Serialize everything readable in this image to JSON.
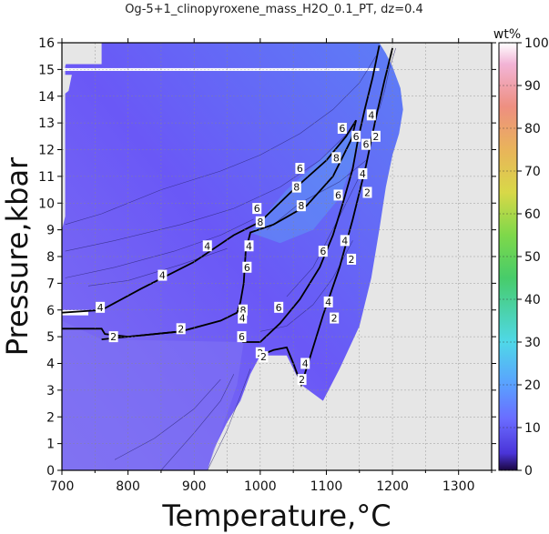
{
  "chart_data": {
    "type": "heatmap",
    "title": "Og-5+1_clinopyroxene_mass_H2O_0.1_PT, dz=0.4",
    "xlabel": "Temperature,°C",
    "ylabel": "Pressure,kbar",
    "xlim": [
      700,
      1350
    ],
    "ylim": [
      0,
      16
    ],
    "xticks": [
      "700",
      "800",
      "900",
      "1000",
      "1100",
      "1200",
      "1300"
    ],
    "yticks": [
      "0",
      "1",
      "2",
      "3",
      "4",
      "5",
      "6",
      "7",
      "8",
      "9",
      "10",
      "11",
      "12",
      "13",
      "14",
      "15",
      "16"
    ],
    "grid": true,
    "colorbar": {
      "unit": "wt%",
      "range": [
        0,
        100
      ],
      "ticks": [
        "0",
        "10",
        "20",
        "30",
        "40",
        "50",
        "60",
        "70",
        "80",
        "90",
        "100"
      ],
      "colors": [
        "#2a0a55",
        "#5544ee",
        "#6677ff",
        "#55aaff",
        "#44dddd",
        "#44cc66",
        "#88dd44",
        "#ddcc44",
        "#ee9966",
        "#f3a6c6",
        "#ffffff"
      ]
    },
    "field_colors": {
      "low": "#7a6cf5",
      "mid": "#6d5cf7",
      "high": "#5a8ef7",
      "no_data": "#e6e6e6"
    },
    "contour_labels": [
      {
        "t": 758,
        "p": 6.1,
        "v": "4"
      },
      {
        "t": 852,
        "p": 7.3,
        "v": "4"
      },
      {
        "t": 920,
        "p": 8.4,
        "v": "4"
      },
      {
        "t": 1000,
        "p": 9.3,
        "v": "8"
      },
      {
        "t": 995,
        "p": 9.8,
        "v": "6"
      },
      {
        "t": 1060,
        "p": 11.3,
        "v": "6"
      },
      {
        "t": 1055,
        "p": 10.6,
        "v": "8"
      },
      {
        "t": 1062,
        "p": 9.9,
        "v": "8"
      },
      {
        "t": 1115,
        "p": 11.7,
        "v": "8"
      },
      {
        "t": 1124,
        "p": 12.8,
        "v": "6"
      },
      {
        "t": 1145,
        "p": 12.5,
        "v": "6"
      },
      {
        "t": 1160,
        "p": 12.2,
        "v": "6"
      },
      {
        "t": 1168,
        "p": 13.3,
        "v": "4"
      },
      {
        "t": 1175,
        "p": 12.5,
        "v": "2"
      },
      {
        "t": 1118,
        "p": 10.3,
        "v": "6"
      },
      {
        "t": 1155,
        "p": 11.1,
        "v": "4"
      },
      {
        "t": 1162,
        "p": 10.4,
        "v": "2"
      },
      {
        "t": 1095,
        "p": 8.2,
        "v": "6"
      },
      {
        "t": 1128,
        "p": 8.6,
        "v": "4"
      },
      {
        "t": 1138,
        "p": 7.9,
        "v": "2"
      },
      {
        "t": 1028,
        "p": 6.1,
        "v": "6"
      },
      {
        "t": 1103,
        "p": 6.3,
        "v": "4"
      },
      {
        "t": 1112,
        "p": 5.7,
        "v": "2"
      },
      {
        "t": 983,
        "p": 8.4,
        "v": "4"
      },
      {
        "t": 980,
        "p": 7.6,
        "v": "6"
      },
      {
        "t": 974,
        "p": 6.0,
        "v": "8"
      },
      {
        "t": 973,
        "p": 5.7,
        "v": "4"
      },
      {
        "t": 972,
        "p": 5.0,
        "v": "6"
      },
      {
        "t": 1000,
        "p": 4.4,
        "v": "2"
      },
      {
        "t": 1005,
        "p": 4.25,
        "v": "2"
      },
      {
        "t": 1068,
        "p": 4.0,
        "v": "4"
      },
      {
        "t": 1063,
        "p": 3.4,
        "v": "2"
      },
      {
        "t": 778,
        "p": 5.0,
        "v": "2"
      },
      {
        "t": 880,
        "p": 5.3,
        "v": "2"
      }
    ]
  }
}
